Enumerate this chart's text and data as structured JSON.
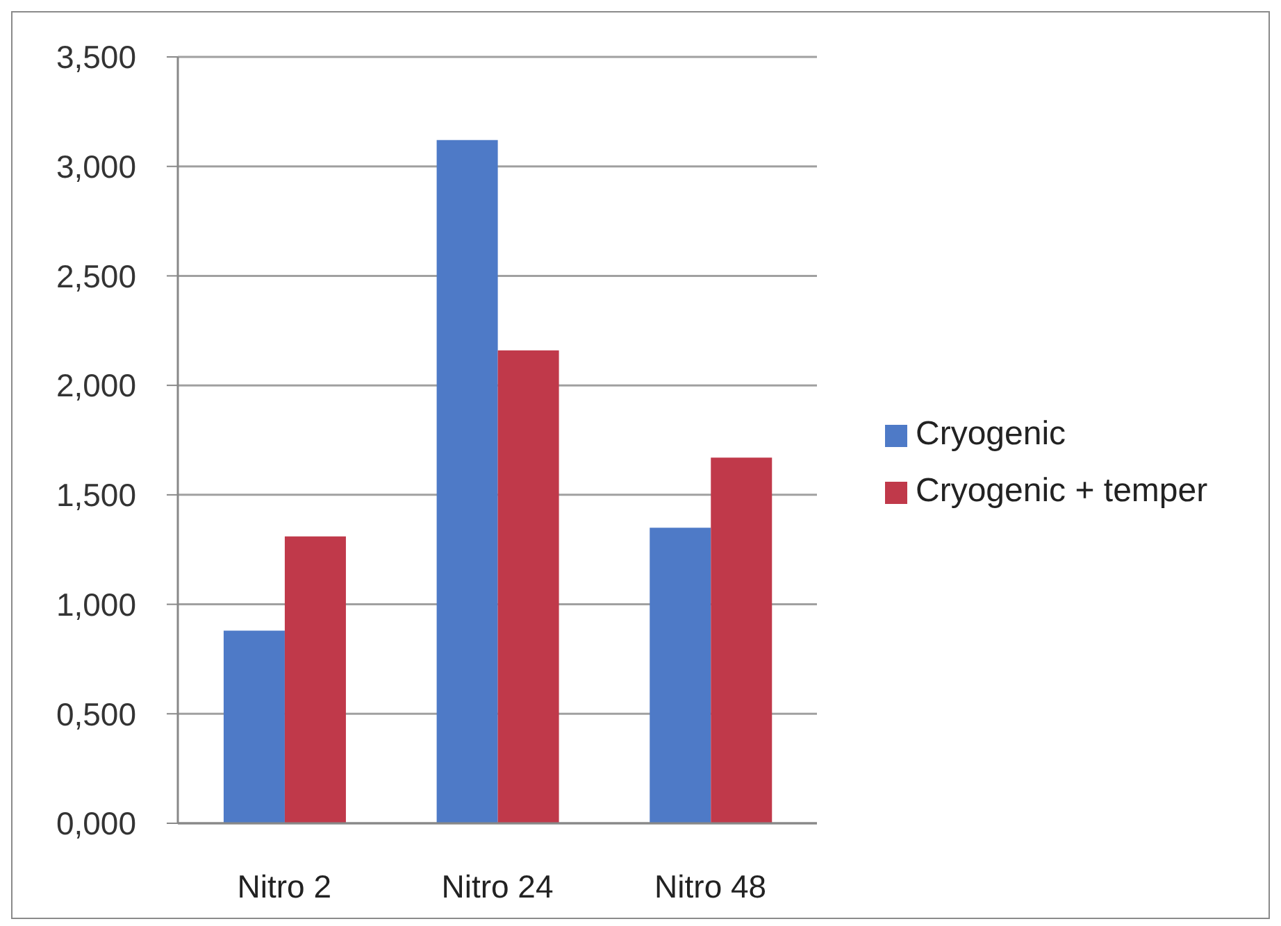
{
  "chart_data": {
    "type": "bar",
    "categories": [
      "Nitro 2",
      "Nitro 24",
      "Nitro 48"
    ],
    "series": [
      {
        "name": "Cryogenic",
        "color": "#4e7ac7",
        "values": [
          0.88,
          3.12,
          1.35
        ]
      },
      {
        "name": "Cryogenic + temper",
        "color": "#c0394a",
        "values": [
          1.31,
          2.16,
          1.67
        ]
      }
    ],
    "ylim": [
      0,
      3.5
    ],
    "yticks": [
      {
        "value": 0,
        "label": "0,000"
      },
      {
        "value": 0.5,
        "label": "0,500"
      },
      {
        "value": 1,
        "label": "1,000"
      },
      {
        "value": 1.5,
        "label": "1,500"
      },
      {
        "value": 2,
        "label": "2,000"
      },
      {
        "value": 2.5,
        "label": "2,500"
      },
      {
        "value": 3,
        "label": "3,000"
      },
      {
        "value": 3.5,
        "label": "3,500"
      }
    ],
    "grid": "y",
    "legend": "right"
  }
}
